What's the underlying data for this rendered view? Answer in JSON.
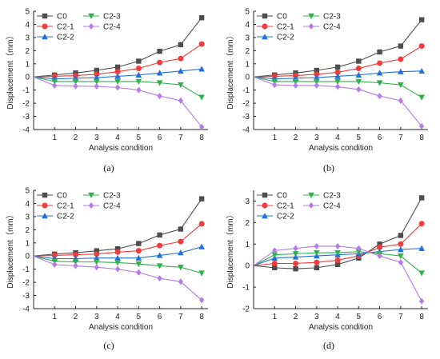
{
  "figure": {
    "colors": {
      "C0": "#4d4d4d",
      "C2-1": "#f23b3b",
      "C2-2": "#1f6fe0",
      "C2-3": "#2fb24a",
      "C2-4": "#b67be6"
    }
  },
  "chart_data": [
    {
      "type": "line",
      "panel_label": "(a)",
      "xlabel": "Analysis condition",
      "ylabel": "Displacement（mm）",
      "x": [
        0,
        1,
        2,
        3,
        4,
        5,
        6,
        7,
        8
      ],
      "x_ticks": [
        1,
        2,
        3,
        4,
        5,
        6,
        7,
        8
      ],
      "xlim": [
        0,
        8.3
      ],
      "ylim": [
        -4,
        5
      ],
      "y_ticks": [
        -4,
        -3,
        -2,
        -1,
        0,
        1,
        2,
        3,
        4,
        5
      ],
      "grid": false,
      "legend": "top-left",
      "series": [
        {
          "name": "C0",
          "marker": "square",
          "values": [
            0,
            0.15,
            0.3,
            0.5,
            0.75,
            1.2,
            1.95,
            2.45,
            4.5
          ]
        },
        {
          "name": "C2-1",
          "marker": "circle",
          "values": [
            0,
            0.05,
            0.1,
            0.2,
            0.4,
            0.65,
            1.1,
            1.4,
            2.5
          ]
        },
        {
          "name": "C2-2",
          "marker": "triangle-up",
          "values": [
            0,
            -0.15,
            -0.1,
            -0.05,
            0.05,
            0.15,
            0.3,
            0.45,
            0.6
          ]
        },
        {
          "name": "C2-3",
          "marker": "triangle-down",
          "values": [
            0,
            -0.35,
            -0.35,
            -0.35,
            -0.35,
            -0.35,
            -0.45,
            -0.6,
            -1.55
          ]
        },
        {
          "name": "C2-4",
          "marker": "diamond",
          "values": [
            0,
            -0.65,
            -0.7,
            -0.72,
            -0.8,
            -1.0,
            -1.45,
            -1.8,
            -3.8
          ]
        }
      ]
    },
    {
      "type": "line",
      "panel_label": "(b)",
      "xlabel": "Analysis condition",
      "ylabel": "Displacement（mm）",
      "x": [
        0,
        1,
        2,
        3,
        4,
        5,
        6,
        7,
        8
      ],
      "x_ticks": [
        1,
        2,
        3,
        4,
        5,
        6,
        7,
        8
      ],
      "xlim": [
        0,
        8.3
      ],
      "ylim": [
        -4,
        5
      ],
      "y_ticks": [
        -4,
        -3,
        -2,
        -1,
        0,
        1,
        2,
        3,
        4,
        5
      ],
      "grid": false,
      "legend": "top-left",
      "series": [
        {
          "name": "C0",
          "marker": "square",
          "values": [
            0,
            0.15,
            0.3,
            0.5,
            0.75,
            1.2,
            1.9,
            2.35,
            4.35
          ]
        },
        {
          "name": "C2-1",
          "marker": "circle",
          "values": [
            0,
            0.05,
            0.1,
            0.2,
            0.35,
            0.65,
            1.05,
            1.35,
            2.35
          ]
        },
        {
          "name": "C2-2",
          "marker": "triangle-up",
          "values": [
            0,
            -0.15,
            -0.1,
            -0.05,
            0.05,
            0.15,
            0.3,
            0.4,
            0.45
          ]
        },
        {
          "name": "C2-3",
          "marker": "triangle-down",
          "values": [
            0,
            -0.35,
            -0.35,
            -0.35,
            -0.35,
            -0.35,
            -0.45,
            -0.6,
            -1.55
          ]
        },
        {
          "name": "C2-4",
          "marker": "diamond",
          "values": [
            0,
            -0.6,
            -0.65,
            -0.65,
            -0.75,
            -0.95,
            -1.45,
            -1.8,
            -3.75
          ]
        }
      ]
    },
    {
      "type": "line",
      "panel_label": "(c)",
      "xlabel": "Analysis condition",
      "ylabel": "Displacement（mm）",
      "x": [
        0,
        1,
        2,
        3,
        4,
        5,
        6,
        7,
        8
      ],
      "x_ticks": [
        1,
        2,
        3,
        4,
        5,
        6,
        7,
        8
      ],
      "xlim": [
        0,
        8.3
      ],
      "ylim": [
        -4,
        5
      ],
      "y_ticks": [
        -4,
        -3,
        -2,
        -1,
        0,
        1,
        2,
        3,
        4,
        5
      ],
      "grid": false,
      "legend": "top-left",
      "series": [
        {
          "name": "C0",
          "marker": "square",
          "values": [
            0,
            0.15,
            0.25,
            0.4,
            0.55,
            0.95,
            1.6,
            2.05,
            4.35
          ]
        },
        {
          "name": "C2-1",
          "marker": "circle",
          "values": [
            0,
            0.05,
            0.1,
            0.15,
            0.3,
            0.4,
            0.8,
            1.1,
            2.45
          ]
        },
        {
          "name": "C2-2",
          "marker": "triangle-up",
          "values": [
            0,
            -0.2,
            -0.2,
            -0.15,
            -0.15,
            -0.15,
            0.05,
            0.25,
            0.7
          ]
        },
        {
          "name": "C2-3",
          "marker": "triangle-down",
          "values": [
            0,
            -0.4,
            -0.45,
            -0.45,
            -0.5,
            -0.6,
            -0.75,
            -0.85,
            -1.3
          ]
        },
        {
          "name": "C2-4",
          "marker": "diamond",
          "values": [
            0,
            -0.65,
            -0.75,
            -0.85,
            -1.0,
            -1.25,
            -1.7,
            -1.95,
            -3.35
          ]
        }
      ]
    },
    {
      "type": "line",
      "panel_label": "(d)",
      "xlabel": "Analysis condition",
      "ylabel": "Displacement（mm）",
      "x": [
        0,
        1,
        2,
        3,
        4,
        5,
        6,
        7,
        8
      ],
      "x_ticks": [
        1,
        2,
        3,
        4,
        5,
        6,
        7,
        8
      ],
      "xlim": [
        0,
        8.3
      ],
      "ylim": [
        -2,
        3.5
      ],
      "y_ticks": [
        -2,
        -1,
        0,
        1,
        2,
        3
      ],
      "grid": false,
      "legend": "top-left",
      "series": [
        {
          "name": "C0",
          "marker": "square",
          "values": [
            0,
            -0.1,
            -0.15,
            -0.1,
            0.05,
            0.35,
            1.0,
            1.4,
            3.15
          ]
        },
        {
          "name": "C2-1",
          "marker": "circle",
          "values": [
            0,
            0.1,
            0.1,
            0.15,
            0.25,
            0.45,
            0.85,
            1.0,
            1.95
          ]
        },
        {
          "name": "C2-2",
          "marker": "triangle-up",
          "values": [
            0,
            0.35,
            0.4,
            0.45,
            0.5,
            0.55,
            0.65,
            0.75,
            0.8
          ]
        },
        {
          "name": "C2-3",
          "marker": "triangle-down",
          "values": [
            0,
            0.5,
            0.55,
            0.6,
            0.6,
            0.65,
            0.55,
            0.45,
            -0.35
          ]
        },
        {
          "name": "C2-4",
          "marker": "diamond",
          "values": [
            0,
            0.7,
            0.8,
            0.9,
            0.9,
            0.8,
            0.45,
            0.15,
            -1.65
          ]
        }
      ]
    }
  ]
}
